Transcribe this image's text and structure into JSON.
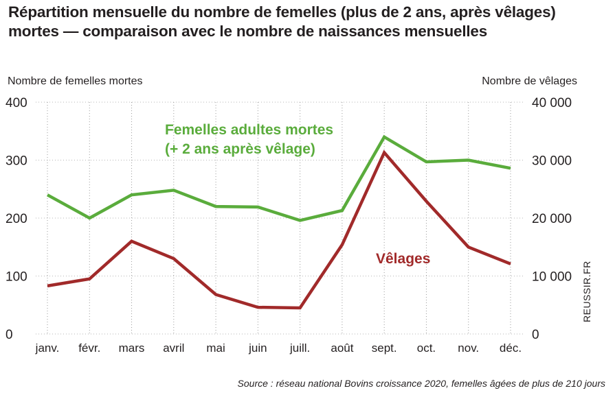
{
  "title_line1": "Répartition mensuelle du nombre de femelles (plus de 2 ans, après vêlages)",
  "title_line2": "mortes — comparaison avec le nombre de naissances mensuelles",
  "source": "Source : réseau national Bovins croissance 2020, femelles âgées de plus de 210 jours",
  "credit": "REUSSIR.FR",
  "chart_data": {
    "type": "line",
    "categories": [
      "janv.",
      "févr.",
      "mars",
      "avril",
      "mai",
      "juin",
      "juill.",
      "août",
      "sept.",
      "oct.",
      "nov.",
      "déc."
    ],
    "ylabel_left": "Nombre de femelles mortes",
    "ylabel_right": "Nombre de vêlages",
    "y_left_ticks": [
      "400",
      "300",
      "200",
      "100",
      "0"
    ],
    "y_right_ticks": [
      "40 000",
      "30 000",
      "20 000",
      "10 000",
      "0"
    ],
    "ylim_left": [
      0,
      400
    ],
    "ylim_right": [
      0,
      40000
    ],
    "grid": "vertical dotted",
    "series": [
      {
        "name": "Femelles adultes mortes",
        "label_lines": [
          "Femelles adultes mortes",
          "(+ 2 ans après vêlage)"
        ],
        "axis": "left",
        "color": "#5aac3c",
        "values": [
          240,
          200,
          240,
          248,
          220,
          219,
          196,
          213,
          340,
          297,
          300,
          286
        ]
      },
      {
        "name": "Vêlages",
        "label_lines": [
          "Vêlages"
        ],
        "axis": "right",
        "color": "#a12a2a",
        "values": [
          8300,
          9500,
          16000,
          13000,
          6800,
          4600,
          4500,
          15400,
          31300,
          22900,
          15000,
          12100
        ]
      }
    ]
  }
}
